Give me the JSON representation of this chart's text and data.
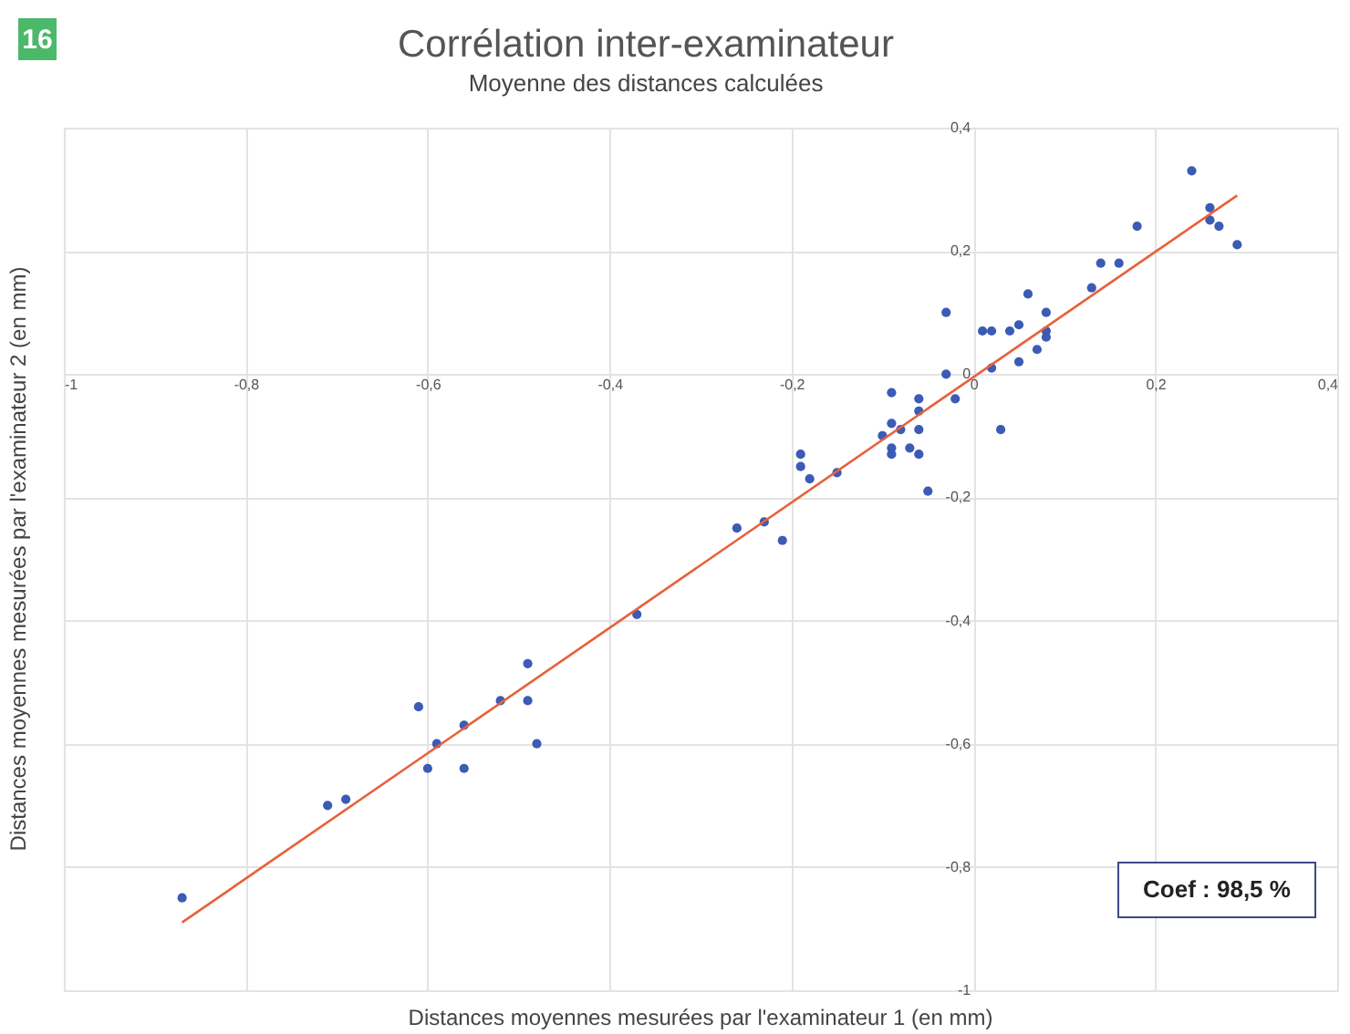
{
  "chart_data": {
    "type": "scatter",
    "title": "Corrélation inter-examinateur",
    "subtitle": "Moyenne des distances calculées",
    "xlabel": "Distances moyennes mesurées par l'examinateur 1 (en mm)",
    "ylabel": "Distances moyennes mesurées par l'examinateur 2 (en mm)",
    "annotations": [
      "16",
      "Coef : 98,5 %"
    ],
    "xlim": [
      -1,
      0.4
    ],
    "ylim": [
      -1,
      0.4
    ],
    "xticks": [
      -1,
      {
        "value": -0.8,
        "label": "-0,8"
      },
      {
        "value": -0.6,
        "label": "-0,6"
      },
      {
        "value": -0.4,
        "label": "-0,4"
      },
      {
        "value": -0.2,
        "label": "-0,2"
      },
      0,
      {
        "value": 0.2,
        "label": "0,2"
      },
      {
        "value": 0.4,
        "label": "0,4"
      }
    ],
    "yticks": [
      -1,
      {
        "value": -0.8,
        "label": "-0,8"
      },
      {
        "value": -0.6,
        "label": "-0,6"
      },
      {
        "value": -0.4,
        "label": "-0,4"
      },
      {
        "value": -0.2,
        "label": "-0,2"
      },
      0,
      {
        "value": 0.2,
        "label": "0,2"
      },
      {
        "value": 0.4,
        "label": "0,4"
      }
    ],
    "grid": true,
    "legend": false,
    "marker": "circle",
    "series": [
      {
        "type": "scatter",
        "color": "#3b5bb5",
        "x": [
          0.24,
          0.26,
          0.26,
          0.27,
          0.29,
          0.18,
          0.14,
          0.16,
          0.13,
          0.06,
          0.08,
          0.08,
          0.08,
          0.07,
          0.05,
          0.04,
          0.05,
          0.02,
          0.01,
          0.02,
          0.03,
          -0.03,
          -0.03,
          -0.02,
          -0.09,
          -0.06,
          -0.06,
          -0.06,
          -0.06,
          -0.07,
          -0.08,
          -0.09,
          -0.09,
          -0.09,
          -0.1,
          -0.05,
          -0.15,
          -0.18,
          -0.19,
          -0.19,
          -0.23,
          -0.26,
          -0.21,
          -0.37,
          -0.49,
          -0.52,
          -0.49,
          -0.48,
          -0.56,
          -0.59,
          -0.61,
          -0.6,
          -0.56,
          -0.69,
          -0.71,
          -0.87
        ],
        "values": [
          0.33,
          0.27,
          0.25,
          0.24,
          0.21,
          0.24,
          0.18,
          0.18,
          0.14,
          0.13,
          0.1,
          0.07,
          0.06,
          0.04,
          0.08,
          0.07,
          0.02,
          0.07,
          0.07,
          0.01,
          -0.09,
          0.1,
          0.0,
          -0.04,
          -0.03,
          -0.04,
          -0.06,
          -0.09,
          -0.13,
          -0.12,
          -0.09,
          -0.08,
          -0.12,
          -0.13,
          -0.1,
          -0.19,
          -0.16,
          -0.17,
          -0.13,
          -0.15,
          -0.24,
          -0.25,
          -0.27,
          -0.39,
          -0.47,
          -0.53,
          -0.53,
          -0.6,
          -0.57,
          -0.6,
          -0.54,
          -0.64,
          -0.64,
          -0.69,
          -0.7,
          -0.85
        ]
      },
      {
        "type": "line",
        "color": "#e8603c",
        "marker": "none",
        "x": [
          -0.87,
          0.29
        ],
        "values": [
          -0.89,
          0.29
        ]
      }
    ]
  }
}
